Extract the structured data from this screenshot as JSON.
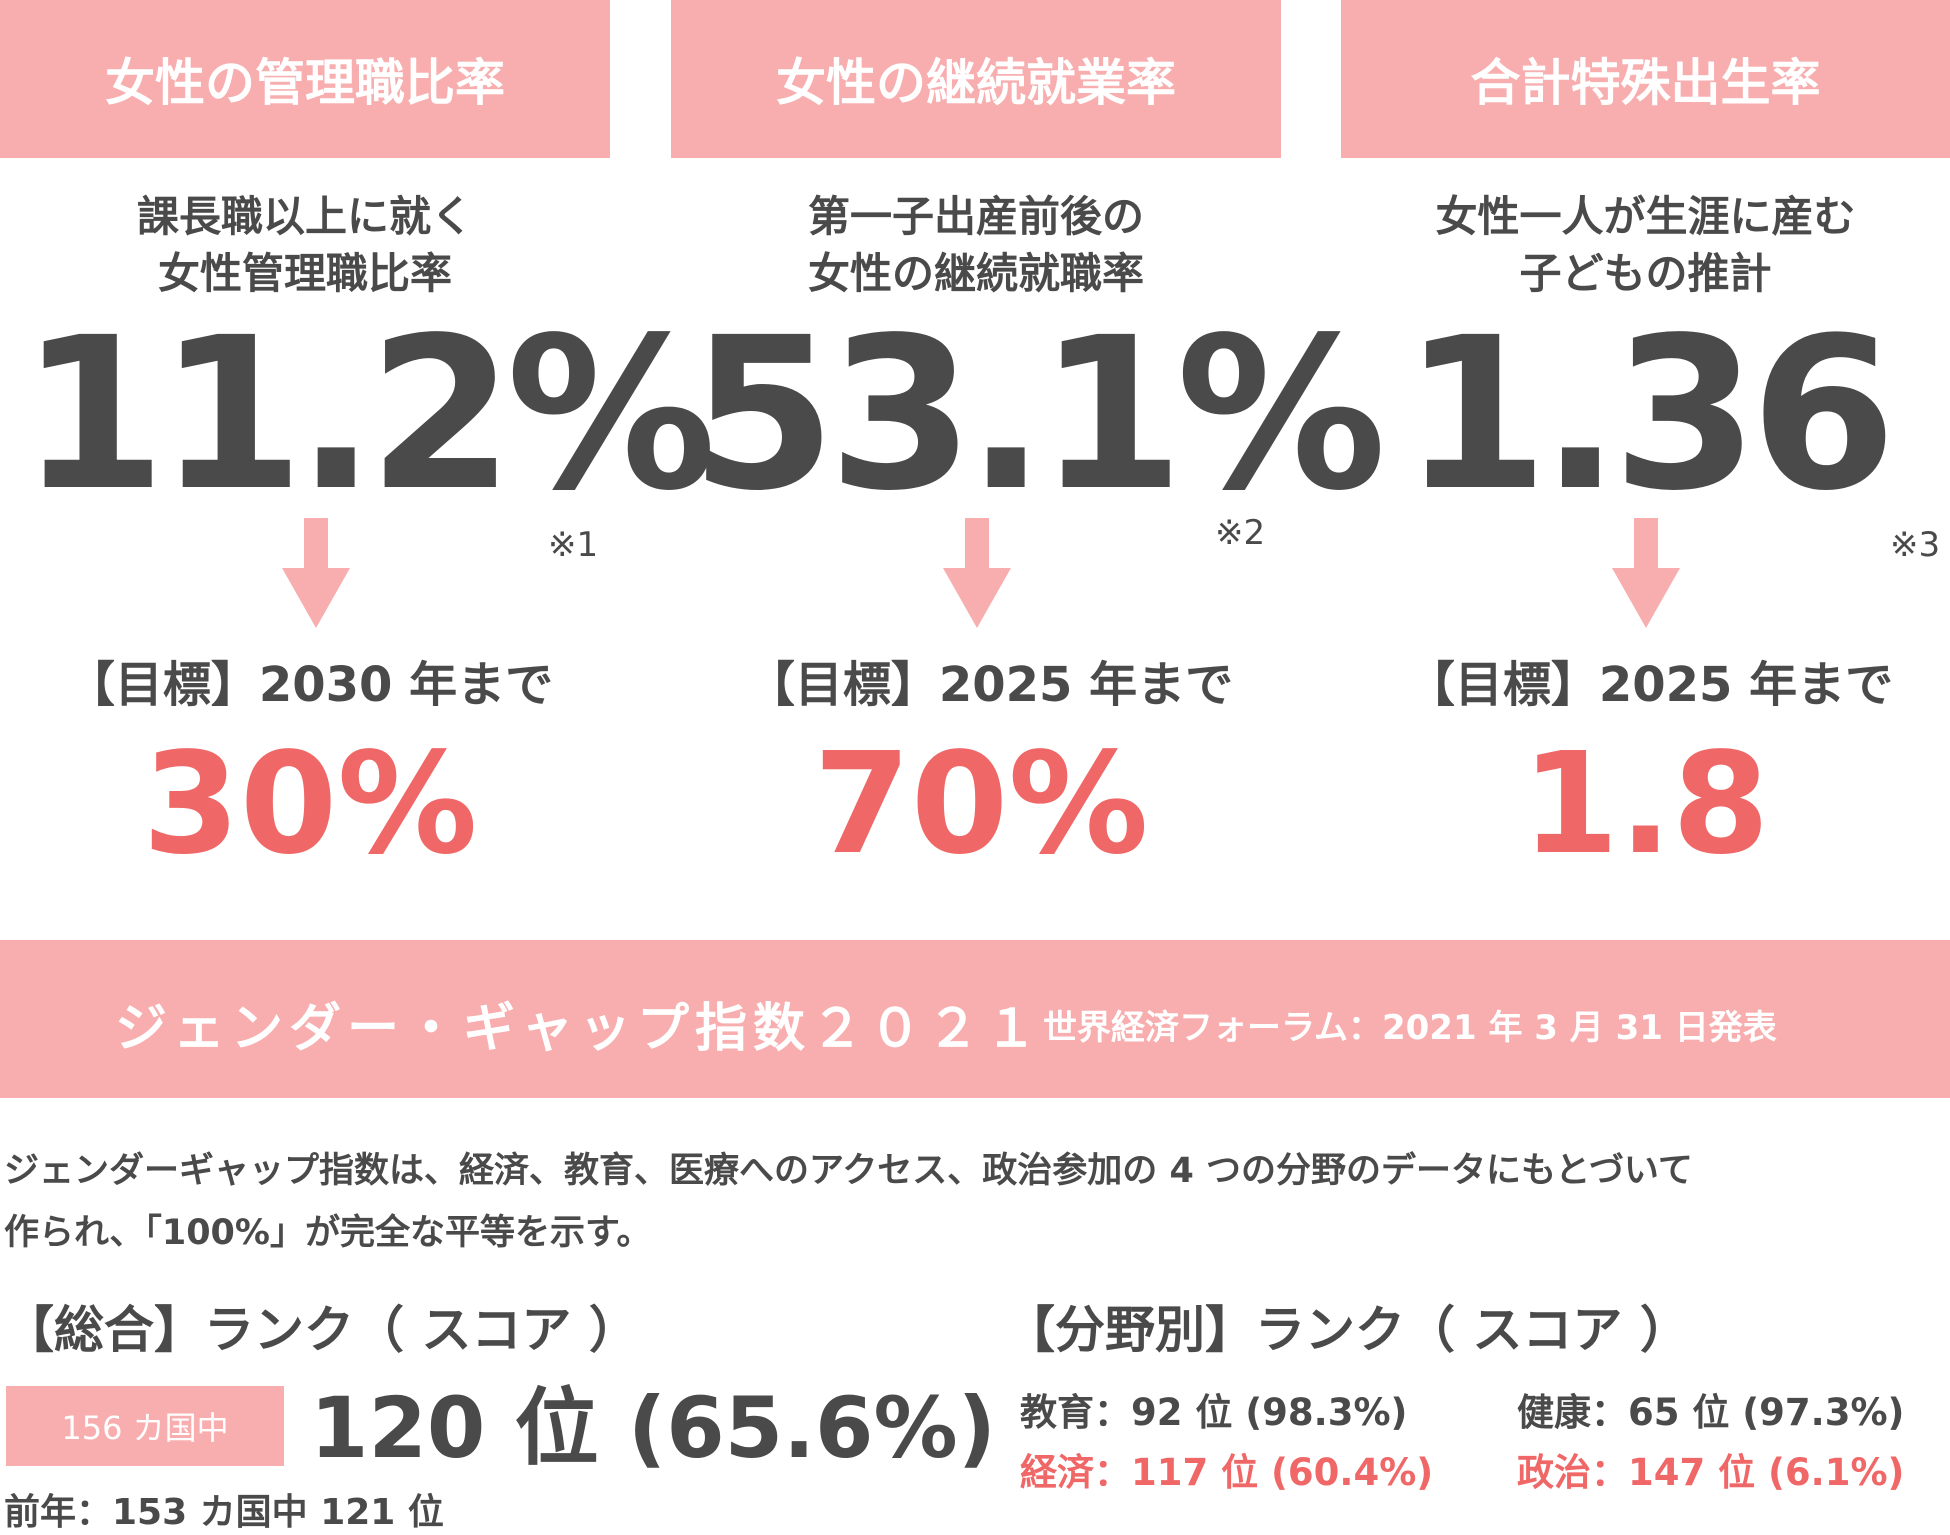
{
  "colors": {
    "header_bg": "#f8adae",
    "text": "#4a4a4a",
    "accent_red": "#f06767",
    "white": "#ffffff"
  },
  "cards": [
    {
      "header": "女性の管理職比率",
      "desc_line1": "課長職以上に就く",
      "desc_line2": "女性管理職比率",
      "value": "11.2%",
      "note": "※1",
      "goal": "【目標】2030 年まで",
      "target": "30%"
    },
    {
      "header": "女性の継続就業率",
      "desc_line1": "第一子出産前後の",
      "desc_line2": "女性の継続就職率",
      "value": "53.1%",
      "note": "※2",
      "goal": "【目標】2025 年まで",
      "target": "70%"
    },
    {
      "header": "合計特殊出生率",
      "desc_line1": "女性一人が生涯に産む",
      "desc_line2": "子どもの推計",
      "value": "1.36",
      "note": "※3",
      "goal": "【目標】2025 年まで",
      "target": "1.8"
    }
  ],
  "banner": {
    "title": "ジェンダー・ギャップ指数２０２１",
    "subtitle": "世界経済フォーラム：2021 年 3 月 31 日発表"
  },
  "paragraph": {
    "line1": "ジェンダーギャップ指数は、経済、教育、医療へのアクセス、政治参加の 4 つの分野のデータにもとづいて",
    "line2": "作られ、「100%」が完全な平等を示す。"
  },
  "overall": {
    "heading": "【総合】ランク（ スコア ）",
    "badge": "156 カ国中",
    "rank": "120 位 (65.6%)",
    "previous": "前年：153 カ国中 121 位"
  },
  "by_field": {
    "heading": "【分野別】ランク（ スコア ）",
    "items": [
      {
        "text": "教育：92 位 (98.3%)"
      },
      {
        "text": "健康：65 位 (97.3%)"
      },
      {
        "text": "経済：117 位 (60.4%)"
      },
      {
        "text": "政治：147 位 (6.1%)"
      }
    ]
  }
}
